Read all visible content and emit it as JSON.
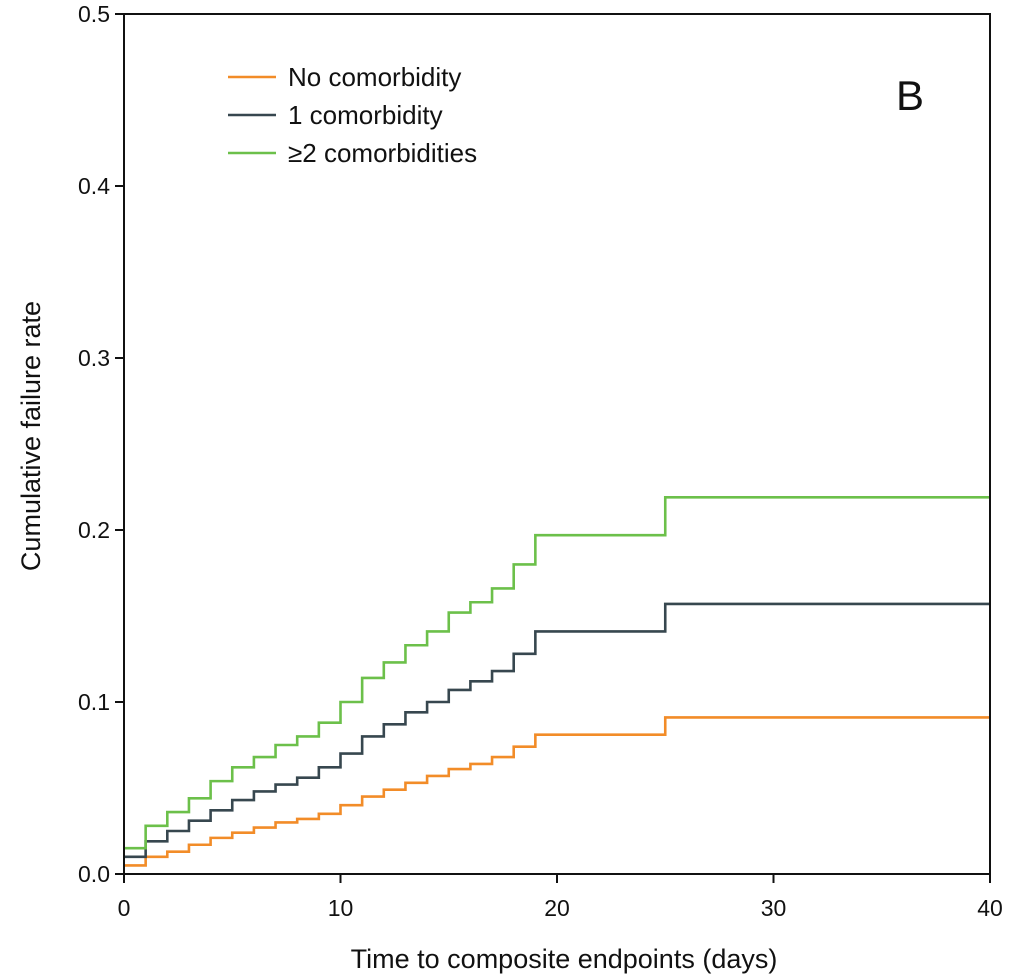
{
  "chart_data": {
    "type": "line",
    "step": true,
    "panel_label": "B",
    "title": "",
    "xlabel": "Time to composite endpoints (days)",
    "ylabel": "Cumulative failure rate",
    "xlim": [
      0,
      40
    ],
    "ylim": [
      0,
      0.5
    ],
    "xticks": [
      0,
      10,
      20,
      30,
      40
    ],
    "xtick_labels": [
      "0",
      "10",
      "20",
      "30",
      "40"
    ],
    "yticks": [
      0.0,
      0.1,
      0.2,
      0.3,
      0.4,
      0.5
    ],
    "ytick_labels": [
      "0.0",
      "0.1",
      "0.2",
      "0.3",
      "0.4",
      "0.5"
    ],
    "grid": false,
    "legend_position": "top-left",
    "series": [
      {
        "name": "No comorbidity",
        "color": "#F28C28",
        "x": [
          0,
          1,
          2,
          3,
          4,
          5,
          6,
          7,
          8,
          9,
          10,
          11,
          12,
          13,
          14,
          15,
          16,
          17,
          18,
          19,
          25,
          40
        ],
        "y": [
          0.005,
          0.01,
          0.013,
          0.017,
          0.021,
          0.024,
          0.027,
          0.03,
          0.032,
          0.035,
          0.04,
          0.045,
          0.049,
          0.053,
          0.057,
          0.061,
          0.064,
          0.068,
          0.074,
          0.081,
          0.091,
          0.091
        ]
      },
      {
        "name": "1 comorbidity",
        "color": "#37474F",
        "x": [
          0,
          1,
          2,
          3,
          4,
          5,
          6,
          7,
          8,
          9,
          10,
          11,
          12,
          13,
          14,
          15,
          16,
          17,
          18,
          19,
          25,
          40
        ],
        "y": [
          0.01,
          0.019,
          0.025,
          0.031,
          0.037,
          0.043,
          0.048,
          0.052,
          0.056,
          0.062,
          0.07,
          0.08,
          0.087,
          0.094,
          0.1,
          0.107,
          0.112,
          0.118,
          0.128,
          0.141,
          0.157,
          0.157
        ]
      },
      {
        "name": "≥2 comorbidities",
        "color": "#6CC04A",
        "x": [
          0,
          1,
          2,
          3,
          4,
          5,
          6,
          7,
          8,
          9,
          10,
          11,
          12,
          13,
          14,
          15,
          16,
          17,
          18,
          19,
          25,
          40
        ],
        "y": [
          0.015,
          0.028,
          0.036,
          0.044,
          0.054,
          0.062,
          0.068,
          0.075,
          0.08,
          0.088,
          0.1,
          0.114,
          0.123,
          0.133,
          0.141,
          0.152,
          0.158,
          0.166,
          0.18,
          0.197,
          0.219,
          0.219
        ]
      }
    ]
  }
}
